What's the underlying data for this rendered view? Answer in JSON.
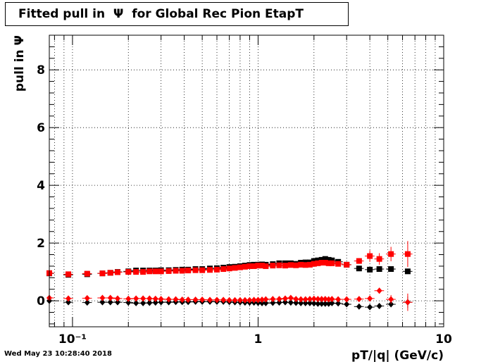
{
  "timestamp": "Wed May 23 10:28:40 2018",
  "chart_data": {
    "type": "scatter",
    "title": "Fitted pull in  Ψ  for Global Rec Pion EtapT",
    "xlabel": "pT/|q| (GeV/c)",
    "ylabel": "pull in  Ψ",
    "x_scale": "log",
    "xlim": [
      0.075,
      10
    ],
    "ylim": [
      -0.9,
      9.2
    ],
    "grid": true,
    "x_tick_labels": [
      "10⁻¹",
      "1",
      "10"
    ],
    "y_tick_labels": [
      "0",
      "2",
      "4",
      "6",
      "8"
    ],
    "colors": {
      "black": "#000000",
      "red": "#ff0000"
    },
    "x": [
      0.075,
      0.095,
      0.12,
      0.145,
      0.16,
      0.175,
      0.2,
      0.22,
      0.24,
      0.26,
      0.28,
      0.3,
      0.33,
      0.36,
      0.39,
      0.42,
      0.46,
      0.5,
      0.55,
      0.6,
      0.65,
      0.7,
      0.75,
      0.8,
      0.85,
      0.9,
      0.95,
      1.0,
      1.05,
      1.1,
      1.2,
      1.3,
      1.4,
      1.5,
      1.6,
      1.7,
      1.8,
      1.9,
      2.0,
      2.1,
      2.2,
      2.3,
      2.4,
      2.5,
      2.7,
      3.0,
      3.5,
      4.0,
      4.5,
      5.2,
      6.4
    ],
    "series": [
      {
        "marker": "square",
        "color": "black",
        "values": [
          0.95,
          0.9,
          0.92,
          0.95,
          0.97,
          1.0,
          1.02,
          1.05,
          1.05,
          1.05,
          1.05,
          1.06,
          1.06,
          1.07,
          1.08,
          1.08,
          1.1,
          1.1,
          1.12,
          1.13,
          1.15,
          1.17,
          1.18,
          1.2,
          1.22,
          1.24,
          1.25,
          1.25,
          1.26,
          1.25,
          1.27,
          1.3,
          1.3,
          1.3,
          1.28,
          1.32,
          1.33,
          1.33,
          1.38,
          1.4,
          1.42,
          1.45,
          1.42,
          1.4,
          1.35,
          1.25,
          1.12,
          1.08,
          1.1,
          1.1,
          1.02
        ],
        "xerr_halfwidth_factor": 0.06
      },
      {
        "marker": "square",
        "color": "red",
        "values": [
          0.96,
          0.92,
          0.94,
          0.95,
          0.97,
          0.99,
          1.0,
          1.0,
          1.0,
          1.02,
          1.02,
          1.02,
          1.03,
          1.04,
          1.04,
          1.05,
          1.06,
          1.06,
          1.07,
          1.08,
          1.1,
          1.12,
          1.14,
          1.16,
          1.18,
          1.2,
          1.2,
          1.22,
          1.22,
          1.2,
          1.22,
          1.23,
          1.22,
          1.24,
          1.23,
          1.25,
          1.24,
          1.25,
          1.28,
          1.3,
          1.32,
          1.32,
          1.3,
          1.3,
          1.28,
          1.25,
          1.38,
          1.55,
          1.45,
          1.62,
          1.62
        ],
        "yerr": [
          0.05,
          0.05,
          0.05,
          0.05,
          0.05,
          0.05,
          0.05,
          0.05,
          0.05,
          0.05,
          0.05,
          0.05,
          0.05,
          0.05,
          0.05,
          0.05,
          0.05,
          0.05,
          0.05,
          0.05,
          0.05,
          0.05,
          0.05,
          0.05,
          0.05,
          0.05,
          0.05,
          0.05,
          0.05,
          0.05,
          0.05,
          0.05,
          0.05,
          0.05,
          0.05,
          0.05,
          0.05,
          0.05,
          0.05,
          0.05,
          0.05,
          0.05,
          0.05,
          0.05,
          0.05,
          0.05,
          0.1,
          0.2,
          0.2,
          0.25,
          0.45
        ]
      },
      {
        "marker": "diamond",
        "color": "black",
        "values": [
          0.0,
          -0.05,
          -0.06,
          -0.05,
          -0.05,
          -0.05,
          -0.06,
          -0.08,
          -0.08,
          -0.07,
          -0.06,
          -0.05,
          -0.05,
          -0.04,
          -0.04,
          -0.04,
          -0.03,
          -0.03,
          -0.03,
          -0.03,
          -0.03,
          -0.04,
          -0.05,
          -0.05,
          -0.06,
          -0.06,
          -0.06,
          -0.07,
          -0.08,
          -0.08,
          -0.07,
          -0.06,
          -0.05,
          -0.06,
          -0.07,
          -0.08,
          -0.08,
          -0.08,
          -0.09,
          -0.1,
          -0.1,
          -0.1,
          -0.1,
          -0.08,
          -0.09,
          -0.12,
          -0.2,
          -0.22,
          -0.18,
          -0.12,
          -0.05
        ],
        "yerr": [
          0.03,
          0.03,
          0.03,
          0.03,
          0.03,
          0.03,
          0.03,
          0.03,
          0.03,
          0.03,
          0.03,
          0.03,
          0.03,
          0.03,
          0.03,
          0.03,
          0.03,
          0.03,
          0.03,
          0.03,
          0.03,
          0.03,
          0.03,
          0.03,
          0.03,
          0.03,
          0.03,
          0.03,
          0.03,
          0.03,
          0.03,
          0.03,
          0.03,
          0.03,
          0.03,
          0.03,
          0.03,
          0.03,
          0.03,
          0.03,
          0.03,
          0.03,
          0.03,
          0.03,
          0.03,
          0.05,
          0.08,
          0.08,
          0.08,
          0.1,
          0.2
        ]
      },
      {
        "marker": "diamond",
        "color": "red",
        "values": [
          0.1,
          0.08,
          0.09,
          0.1,
          0.1,
          0.08,
          0.07,
          0.08,
          0.08,
          0.08,
          0.07,
          0.06,
          0.05,
          0.05,
          0.04,
          0.04,
          0.04,
          0.04,
          0.03,
          0.03,
          0.03,
          0.02,
          0.02,
          0.02,
          0.02,
          0.02,
          0.03,
          0.03,
          0.04,
          0.05,
          0.06,
          0.06,
          0.08,
          0.1,
          0.06,
          0.05,
          0.05,
          0.06,
          0.07,
          0.06,
          0.06,
          0.06,
          0.05,
          0.06,
          0.05,
          0.05,
          0.06,
          0.08,
          0.35,
          0.05,
          -0.05
        ],
        "yerr": [
          0.03,
          0.03,
          0.03,
          0.03,
          0.03,
          0.03,
          0.03,
          0.03,
          0.03,
          0.03,
          0.03,
          0.03,
          0.03,
          0.03,
          0.03,
          0.03,
          0.03,
          0.03,
          0.03,
          0.03,
          0.03,
          0.03,
          0.03,
          0.03,
          0.03,
          0.03,
          0.03,
          0.03,
          0.03,
          0.03,
          0.03,
          0.03,
          0.03,
          0.03,
          0.03,
          0.03,
          0.03,
          0.03,
          0.03,
          0.03,
          0.03,
          0.03,
          0.03,
          0.03,
          0.03,
          0.05,
          0.08,
          0.1,
          0.1,
          0.15,
          0.3
        ]
      }
    ]
  }
}
